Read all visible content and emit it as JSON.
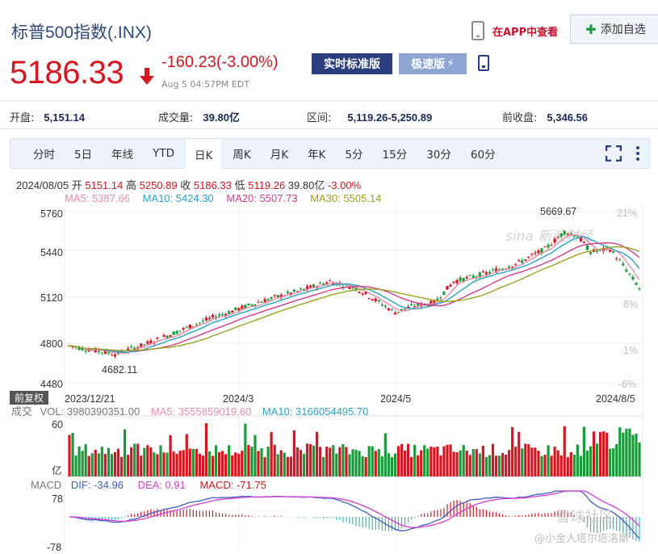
{
  "stock": {
    "name": "标普500指数(.INX)",
    "price": "5186.33",
    "change": "-160.23(-3.00%)",
    "quote_time": "Aug 5 04:57PM EDT"
  },
  "header": {
    "app_link": "在APP中查看",
    "add_watchlist": "添加自选",
    "btn_realtime": "实时标准版",
    "btn_fast": "极速版"
  },
  "stats": [
    {
      "label": "开盘:",
      "value": "5,151.14"
    },
    {
      "label": "成交量:",
      "value": "39.80亿"
    },
    {
      "label": "区间:",
      "value": "5,119.26-5,250.89"
    },
    {
      "label": "前收盘:",
      "value": "5,346.56"
    }
  ],
  "tabs": [
    "分时",
    "5日",
    "年线",
    "YTD",
    "日K",
    "周K",
    "月K",
    "年K",
    "5分",
    "15分",
    "30分",
    "60分"
  ],
  "active_tab": "日K",
  "info": {
    "date": "2024/08/05",
    "open_label": "开",
    "open": "5151.14",
    "high_label": "高",
    "high": "5250.89",
    "close_label": "收",
    "close": "5186.33",
    "low_label": "低",
    "low": "5119.26",
    "vol": "39.80亿",
    "pct": "-3.00%"
  },
  "ma": {
    "ma5": "MA5: 5387.66",
    "ma10": "MA10: 5424.30",
    "ma20": "MA20: 5507.73",
    "ma30": "MA30: 5505.14"
  },
  "colors": {
    "up": "#d9141e",
    "down": "#1a9a3a",
    "ma5": "#e68aaa",
    "ma10": "#27a3c9",
    "ma20": "#d63a8a",
    "ma30": "#9aa21e",
    "dif": "#3a5fbf",
    "dea": "#d63ad6"
  },
  "chart": {
    "y_ticks": [
      "5760",
      "5440",
      "5120",
      "4800",
      "4480"
    ],
    "pct_ticks": [
      "21%",
      "8%",
      "1%",
      "-6%"
    ],
    "x_ticks": [
      "2023/12/21",
      "2024/3",
      "2024/5",
      "2024/8/5"
    ],
    "high_annotation": "5669.67",
    "low_annotation": "4682.11"
  },
  "volume": {
    "fq_label": "前复权",
    "label": "成交",
    "vol": "VOL: 3980390351.00",
    "ma5": "MA5: 3555859019.60",
    "ma10": "MA10: 3166054495.70",
    "top_tick": "60",
    "unit": "亿"
  },
  "macd": {
    "label": "MACD",
    "dif": "DIF: -34.96",
    "dea": "DEA: 0.91",
    "macd": "MACD: -71.75",
    "top_tick": "78",
    "bottom_tick": "-78"
  },
  "watermarks": {
    "sina": "sina 新浪财经",
    "xueqiu": "雪球社区",
    "user": "@小金人塔尔塔洛斯"
  }
}
